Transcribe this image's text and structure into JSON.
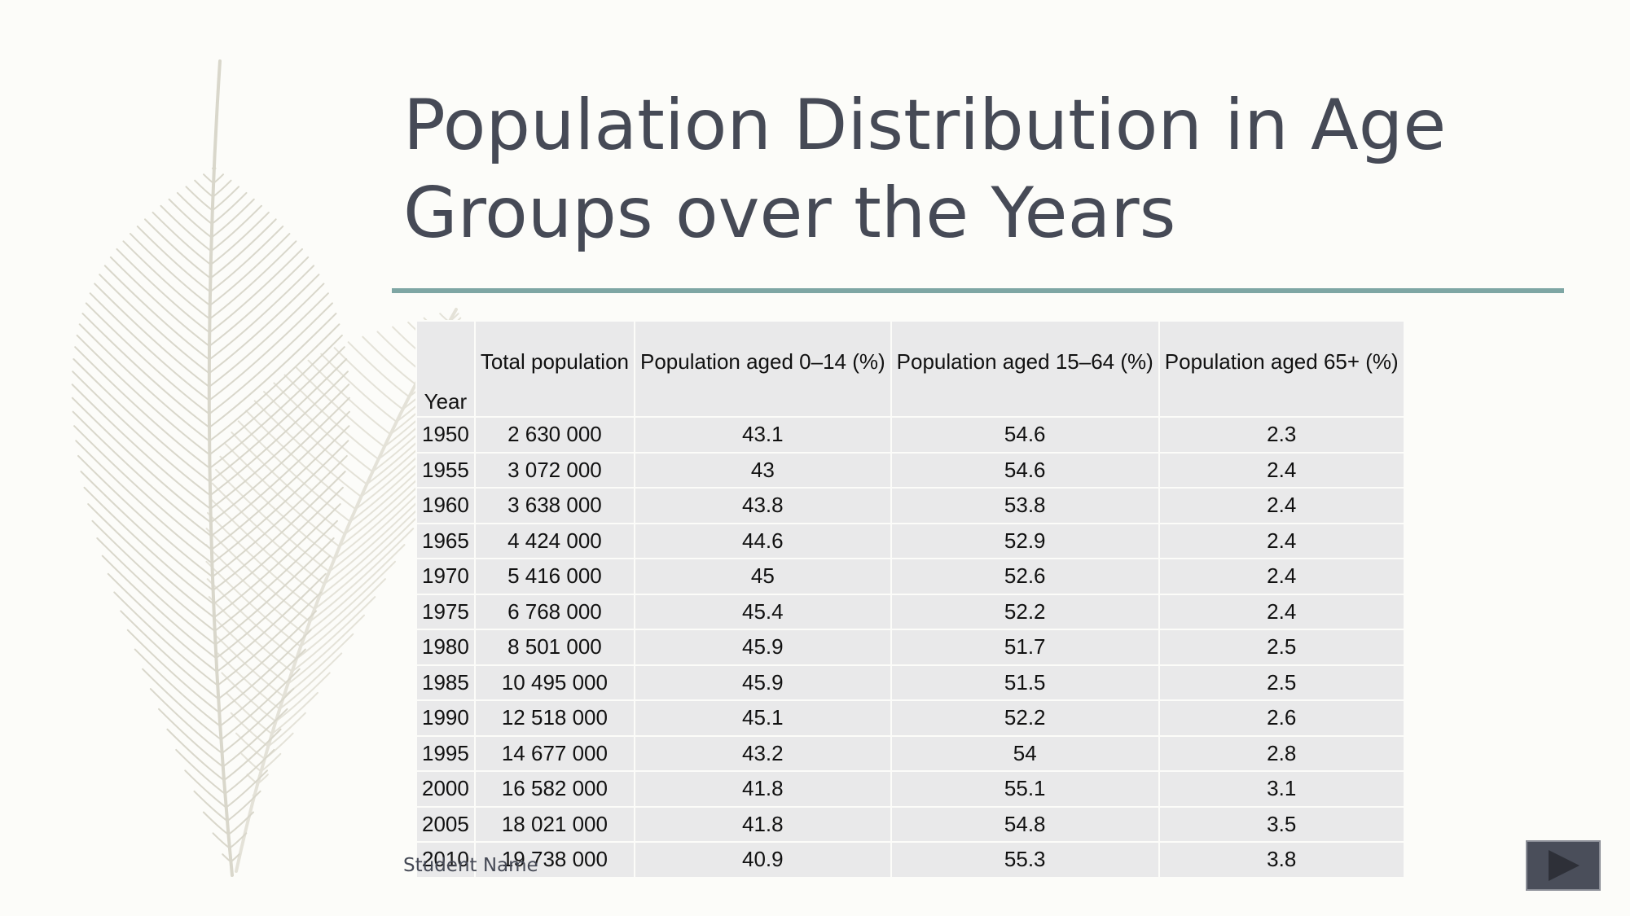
{
  "header": {
    "title_lines": [
      "Population Distribution in Age",
      "Groups over the Years"
    ]
  },
  "table": {
    "columns": [
      "Year",
      "Total population",
      "Population aged 0–14 (%)",
      "Population aged 15–64 (%)",
      "Population aged 65+ (%)"
    ],
    "rows": [
      [
        "1950",
        "2 630 000",
        "43.1",
        "54.6",
        "2.3"
      ],
      [
        "1955",
        "3 072 000",
        "43",
        "54.6",
        "2.4"
      ],
      [
        "1960",
        "3 638 000",
        "43.8",
        "53.8",
        "2.4"
      ],
      [
        "1965",
        "4 424 000",
        "44.6",
        "52.9",
        "2.4"
      ],
      [
        "1970",
        "5 416 000",
        "45",
        "52.6",
        "2.4"
      ],
      [
        "1975",
        "6 768 000",
        "45.4",
        "52.2",
        "2.4"
      ],
      [
        "1980",
        "8 501 000",
        "45.9",
        "51.7",
        "2.5"
      ],
      [
        "1985",
        "10 495 000",
        "45.9",
        "51.5",
        "2.5"
      ],
      [
        "1990",
        "12 518 000",
        "45.1",
        "52.2",
        "2.6"
      ],
      [
        "1995",
        "14 677 000",
        "43.2",
        "54",
        "2.8"
      ],
      [
        "2000",
        "16 582 000",
        "41.8",
        "55.1",
        "3.1"
      ],
      [
        "2005",
        "18 021 000",
        "41.8",
        "54.8",
        "3.5"
      ],
      [
        "2010",
        "19 738 000",
        "40.9",
        "55.3",
        "3.8"
      ]
    ]
  },
  "footer": {
    "author": "Student Name"
  }
}
